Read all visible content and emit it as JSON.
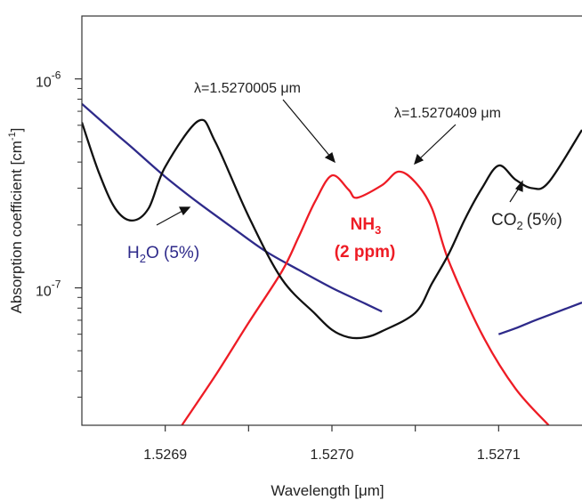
{
  "chart_data": {
    "type": "line",
    "xlabel": "Wavelength [μm]",
    "ylabel_main": "Absorption coefficient [cm",
    "ylabel_sup": "-1",
    "ylabel_end": "]",
    "y_scale": "log",
    "xlim": [
      1.52685,
      1.52715
    ],
    "ylim": [
      2.2e-08,
      2e-06
    ],
    "x_ticks": [
      {
        "value": 1.5269,
        "label": "1.5269"
      },
      {
        "value": 1.527,
        "label": "1.5270"
      },
      {
        "value": 1.5271,
        "label": "1.5271"
      }
    ],
    "x_minor_ticks": [
      1.52695,
      1.52705
    ],
    "y_ticks": [
      {
        "value": 1e-06,
        "base": "10",
        "exp": "-6"
      },
      {
        "value": 1e-07,
        "base": "10",
        "exp": "-7"
      }
    ],
    "y_minor_ticks": [
      2e-07,
      3e-07,
      4e-07,
      5e-07,
      6e-07,
      7e-07,
      8e-07,
      9e-07,
      3e-08,
      4e-08,
      5e-08,
      6e-08,
      7e-08,
      8e-08,
      9e-08
    ],
    "grid": false,
    "series": [
      {
        "name": "H2O (5%)",
        "color": "#2e2a8a",
        "segments": [
          [
            [
              1.52685,
              7.6e-07
            ],
            [
              1.52687,
              5.5e-07
            ],
            [
              1.52688,
              4.7e-07
            ],
            [
              1.5269,
              3.4e-07
            ],
            [
              1.52692,
              2.55e-07
            ],
            [
              1.52694,
              1.95e-07
            ],
            [
              1.52696,
              1.5e-07
            ],
            [
              1.52698,
              1.22e-07
            ],
            [
              1.527,
              1e-07
            ],
            [
              1.52702,
              8.4e-08
            ],
            [
              1.52703,
              7.7e-08
            ]
          ],
          [
            [
              1.5271,
              6e-08
            ],
            [
              1.52711,
              6.4e-08
            ],
            [
              1.52712,
              6.9e-08
            ],
            [
              1.52713,
              7.4e-08
            ],
            [
              1.52715,
              8.5e-08
            ]
          ]
        ]
      },
      {
        "name": "NH3 (2 ppm)",
        "color": "#ee1c25",
        "segments": [
          [
            [
              1.52691,
              2.2e-08
            ],
            [
              1.52693,
              3.8e-08
            ],
            [
              1.52695,
              6.8e-08
            ],
            [
              1.52697,
              1.2e-07
            ],
            [
              1.52698,
              1.75e-07
            ],
            [
              1.52699,
              2.6e-07
            ],
            [
              1.527,
              3.45e-07
            ],
            [
              1.52701,
              2.95e-07
            ],
            [
              1.527015,
              2.7e-07
            ],
            [
              1.52703,
              3.1e-07
            ],
            [
              1.52704,
              3.6e-07
            ],
            [
              1.52705,
              3.2e-07
            ],
            [
              1.52706,
              2.4e-07
            ],
            [
              1.52707,
              1.35e-07
            ],
            [
              1.52709,
              6e-08
            ],
            [
              1.52711,
              3.3e-08
            ],
            [
              1.52713,
              2.2e-08
            ]
          ]
        ]
      },
      {
        "name": "CO2 (5%)",
        "color": "#111111",
        "segments": [
          [
            [
              1.52685,
              6.2e-07
            ],
            [
              1.52686,
              3.6e-07
            ],
            [
              1.52687,
              2.4e-07
            ],
            [
              1.52688,
              2.1e-07
            ],
            [
              1.52689,
              2.4e-07
            ],
            [
              1.5269,
              3.8e-07
            ],
            [
              1.52692,
              6.3e-07
            ],
            [
              1.52693,
              5e-07
            ],
            [
              1.52695,
              2.2e-07
            ],
            [
              1.52697,
              1.1e-07
            ],
            [
              1.52699,
              7.5e-08
            ],
            [
              1.527,
              6.3e-08
            ],
            [
              1.52701,
              5.8e-08
            ],
            [
              1.52702,
              5.8e-08
            ],
            [
              1.52703,
              6.2e-08
            ],
            [
              1.52705,
              7.6e-08
            ],
            [
              1.52706,
              1.05e-07
            ],
            [
              1.52707,
              1.45e-07
            ],
            [
              1.52708,
              2.15e-07
            ],
            [
              1.52709,
              3e-07
            ],
            [
              1.5271,
              3.85e-07
            ],
            [
              1.52711,
              3.3e-07
            ],
            [
              1.52712,
              3e-07
            ],
            [
              1.52713,
              3.2e-07
            ],
            [
              1.52715,
              5.7e-07
            ]
          ]
        ]
      }
    ],
    "labels": {
      "h2o_base": "H",
      "h2o_sub": "2",
      "h2o_rest": "O (5%)",
      "nh3_base": "NH",
      "nh3_sub": "3",
      "nh3_line2": "(2 ppm)",
      "co2_base": "CO",
      "co2_sub": "2",
      "co2_rest": "(5%)",
      "peak1": "λ=1.5270005 μm",
      "peak2": "λ=1.5270409 μm"
    }
  }
}
